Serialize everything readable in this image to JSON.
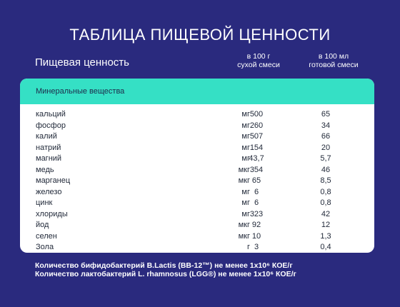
{
  "title": "ТАБЛИЦА ПИЩЕВОЙ ЦЕННОСТИ",
  "header": {
    "label": "Пищевая ценность",
    "col1_line1": "в 100 г",
    "col1_line2": "сухой смеси",
    "col2_line1": "в 100 мл",
    "col2_line2": "готовой смеси"
  },
  "section": "Минеральные вещества",
  "rows": [
    {
      "name": "кальций",
      "unit": "мг",
      "v1": "500",
      "v2": "65"
    },
    {
      "name": "фосфор",
      "unit": "мг",
      "v1": "260",
      "v2": "34"
    },
    {
      "name": "калий",
      "unit": "мг",
      "v1": "507",
      "v2": "66"
    },
    {
      "name": "натрий",
      "unit": "мг",
      "v1": "154",
      "v2": "20"
    },
    {
      "name": "магний",
      "unit": "мг",
      "v1": "43,7",
      "v2": "5,7"
    },
    {
      "name": "медь",
      "unit": "мкг",
      "v1": "354",
      "v2": "46"
    },
    {
      "name": "марганец",
      "unit": "мкг",
      "v1": "65",
      "v2": "8,5"
    },
    {
      "name": "железо",
      "unit": "мг",
      "v1": "6",
      "v2": "0,8"
    },
    {
      "name": "цинк",
      "unit": "мг",
      "v1": "6",
      "v2": "0,8"
    },
    {
      "name": "хлориды",
      "unit": "мг",
      "v1": "323",
      "v2": "42"
    },
    {
      "name": "йод",
      "unit": "мкг",
      "v1": "92",
      "v2": "12"
    },
    {
      "name": "селен",
      "unit": "мкг",
      "v1": "10",
      "v2": "1,3"
    },
    {
      "name": "Зола",
      "unit": "г",
      "v1": "3",
      "v2": "0,4"
    }
  ],
  "notes": [
    "Количество бифидобактерий B.Lactis (BB-12™) не менее 1x10⁶ КОЕ/г",
    "Количество лактобактерий L. rhamnosus (LGG®) не менее 1x10⁶ КОЕ/г"
  ]
}
